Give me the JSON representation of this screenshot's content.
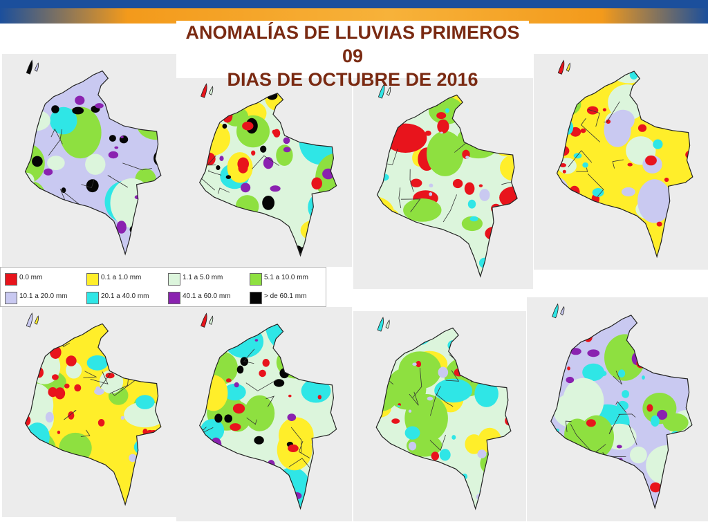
{
  "slide": {
    "title_line1": "ANOMALÍAS DE LLUVIAS PRIMEROS 09",
    "title_line2": "DIAS DE OCTUBRE DE 2016",
    "colors": {
      "title_text": "#7a2a12",
      "accent_orange": "#f39a1b",
      "accent_blue": "#1b4f9c",
      "panel_bg": "#ececec"
    }
  },
  "legend": {
    "items": [
      {
        "label": "0.0 mm",
        "color": "#e8141c"
      },
      {
        "label": "0.1 a 1.0 mm",
        "color": "#ffee2a"
      },
      {
        "label": "1.1 a 5.0 mm",
        "color": "#dcf5dc"
      },
      {
        "label": "5.1 a 10.0 mm",
        "color": "#8ee040"
      },
      {
        "label": "10.1 a 20.0 mm",
        "color": "#c9c9f1"
      },
      {
        "label": "20.1 a 40.0 mm",
        "color": "#2fe6e6"
      },
      {
        "label": "40.1 a 60.0 mm",
        "color": "#8a22b0"
      },
      {
        "label": "> de 60.1 mm",
        "color": "#050505"
      }
    ]
  },
  "maps": [
    {
      "name": "day-1",
      "base": "#c9c9f1",
      "secondary": [
        "#8ee040",
        "#2fe6e6",
        "#dcf5dc"
      ],
      "hotspots": [
        "#050505",
        "#8a22b0",
        "#050505"
      ]
    },
    {
      "name": "day-2",
      "base": "#dcf5dc",
      "secondary": [
        "#2fe6e6",
        "#ffee2a",
        "#8ee040"
      ],
      "hotspots": [
        "#8a22b0",
        "#050505",
        "#e8141c"
      ]
    },
    {
      "name": "day-3",
      "base": "#dcf5dc",
      "secondary": [
        "#ffee2a",
        "#e8141c",
        "#8ee040"
      ],
      "hotspots": [
        "#e8141c",
        "#c9c9f1",
        "#2fe6e6"
      ]
    },
    {
      "name": "day-4",
      "base": "#ffee2a",
      "secondary": [
        "#8ee040",
        "#dcf5dc",
        "#c9c9f1"
      ],
      "hotspots": [
        "#e8141c",
        "#2fe6e6",
        "#e8141c"
      ]
    },
    {
      "name": "day-5",
      "base": "#ffee2a",
      "secondary": [
        "#8ee040",
        "#dcf5dc",
        "#2fe6e6"
      ],
      "hotspots": [
        "#e8141c",
        "#e8141c",
        "#c9c9f1"
      ]
    },
    {
      "name": "day-6",
      "base": "#dcf5dc",
      "secondary": [
        "#8ee040",
        "#2fe6e6",
        "#ffee2a"
      ],
      "hotspots": [
        "#050505",
        "#8a22b0",
        "#e8141c"
      ]
    },
    {
      "name": "day-7",
      "base": "#dcf5dc",
      "secondary": [
        "#ffee2a",
        "#8ee040",
        "#2fe6e6"
      ],
      "hotspots": [
        "#e8141c",
        "#c9c9f1",
        "#2fe6e6"
      ]
    },
    {
      "name": "day-8",
      "base": "#c9c9f1",
      "secondary": [
        "#2fe6e6",
        "#dcf5dc",
        "#8ee040"
      ],
      "hotspots": [
        "#8a22b0",
        "#e8141c",
        "#2fe6e6"
      ]
    }
  ]
}
